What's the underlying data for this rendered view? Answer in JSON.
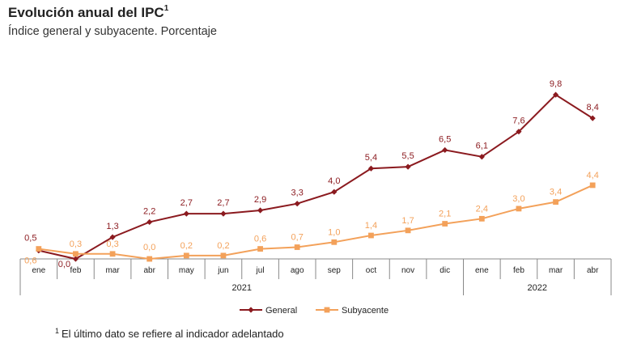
{
  "title": "Evolución anual del IPC",
  "title_superscript": "1",
  "subtitle": "Índice general y subyacente. Porcentaje",
  "footnote_marker": "1",
  "footnote": "El último dato se refiere al indicador adelantado",
  "colors": {
    "general": "#8b1a1f",
    "subyacente": "#f3a15a",
    "axis": "#888888"
  },
  "chart_data": {
    "type": "line",
    "categories": [
      "ene",
      "feb",
      "mar",
      "abr",
      "may",
      "jun",
      "jul",
      "ago",
      "sep",
      "oct",
      "nov",
      "dic",
      "ene",
      "feb",
      "mar",
      "abr"
    ],
    "year_groups": [
      {
        "label": "2021",
        "start": 0,
        "end": 11
      },
      {
        "label": "2022",
        "start": 12,
        "end": 15
      }
    ],
    "series": [
      {
        "name": "General",
        "values": [
          0.5,
          0.0,
          1.3,
          2.2,
          2.7,
          2.7,
          2.9,
          3.3,
          4.0,
          5.4,
          5.5,
          6.5,
          6.1,
          7.6,
          9.8,
          8.4
        ],
        "labels": [
          "0,5",
          "0,0",
          "1,3",
          "2,2",
          "2,7",
          "2,7",
          "2,9",
          "3,3",
          "4,0",
          "5,4",
          "5,5",
          "6,5",
          "6,1",
          "7,6",
          "9,8",
          "8,4"
        ]
      },
      {
        "name": "Subyacente",
        "values": [
          0.6,
          0.3,
          0.3,
          0.0,
          0.2,
          0.2,
          0.6,
          0.7,
          1.0,
          1.4,
          1.7,
          2.1,
          2.4,
          3.0,
          3.4,
          4.4
        ],
        "labels": [
          "0,6",
          "0,3",
          "0,3",
          "0,0",
          "0,2",
          "0,2",
          "0,6",
          "0,7",
          "1,0",
          "1,4",
          "1,7",
          "2,1",
          "2,4",
          "3,0",
          "3,4",
          "4,4"
        ]
      }
    ],
    "ylim": [
      0,
      10
    ],
    "grid": false,
    "legend_position": "bottom-center"
  }
}
